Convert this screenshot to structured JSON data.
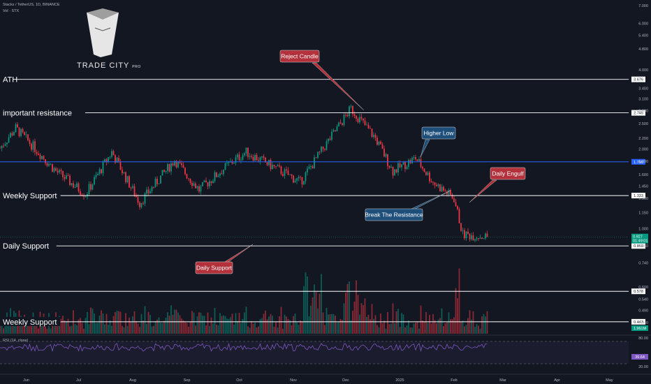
{
  "header": {
    "symbol_line": "Stacks / TetherUS, 1D, BINANCE",
    "volume_line": "Vol · STX"
  },
  "logo": {
    "text": "TRADE CITY",
    "suffix": "PRO"
  },
  "rsi": {
    "label": "RSI (14, close)",
    "upper": "80.00",
    "lower": "20.00",
    "value": "39.64"
  },
  "chart_data": {
    "type": "candlestick",
    "y_scale": "log",
    "y_ticks": [
      7.0,
      6.0,
      5.4,
      4.8,
      4.0,
      3.4,
      3.1,
      2.8,
      2.5,
      2.2,
      2.0,
      1.8,
      1.6,
      1.45,
      1.3,
      1.15,
      1.0,
      0.86,
      0.74,
      0.6,
      0.54,
      0.49,
      0.44
    ],
    "y_tick_labels": [
      "7.000",
      "6.000",
      "5.400",
      "4.800",
      "4.000",
      "3.400",
      "3.100",
      "2.800",
      "2.500",
      "2.200",
      "2.000",
      "1.800",
      "1.600",
      "1.450",
      "1.300",
      "1.150",
      "1.000",
      "0.860",
      "0.740",
      "0.600",
      "0.540",
      "0.490",
      "0.440"
    ],
    "x_labels": [
      "Jun",
      "Jul",
      "Aug",
      "Sep",
      "Oct",
      "Nov",
      "Dec",
      "2025",
      "Feb",
      "Mar",
      "Apr",
      "May"
    ],
    "price_path": [
      {
        "date": "2024-05-17",
        "close": 2.02
      },
      {
        "date": "2024-05-26",
        "close": 2.4
      },
      {
        "date": "2024-06-05",
        "close": 2.05
      },
      {
        "date": "2024-06-18",
        "close": 1.65
      },
      {
        "date": "2024-07-05",
        "close": 1.35
      },
      {
        "date": "2024-07-20",
        "close": 1.95
      },
      {
        "date": "2024-08-05",
        "close": 1.25
      },
      {
        "date": "2024-08-25",
        "close": 1.82
      },
      {
        "date": "2024-09-08",
        "close": 1.4
      },
      {
        "date": "2024-09-25",
        "close": 1.75
      },
      {
        "date": "2024-10-05",
        "close": 1.95
      },
      {
        "date": "2024-10-25",
        "close": 1.65
      },
      {
        "date": "2024-11-05",
        "close": 1.5
      },
      {
        "date": "2024-11-20",
        "close": 2.1
      },
      {
        "date": "2024-12-04",
        "close": 2.85
      },
      {
        "date": "2024-12-18",
        "close": 2.2
      },
      {
        "date": "2024-12-28",
        "close": 1.65
      },
      {
        "date": "2025-01-10",
        "close": 1.85
      },
      {
        "date": "2025-01-20",
        "close": 1.5
      },
      {
        "date": "2025-02-01",
        "close": 1.3
      },
      {
        "date": "2025-02-06",
        "close": 0.95
      },
      {
        "date": "2025-02-20",
        "close": 0.93
      }
    ],
    "levels": [
      {
        "name": "ATH",
        "value": 3.676,
        "value_label": "3.676",
        "color": "#ffffff"
      },
      {
        "name": "important resistance",
        "value": 2.745,
        "value_label": "2.745",
        "color": "#ffffff"
      },
      {
        "name": "",
        "value": 1.79,
        "value_label": "1.790",
        "color": "#2962ff"
      },
      {
        "name": "Weekly Support",
        "value": 1.333,
        "value_label": "1.333",
        "color": "#ffffff"
      },
      {
        "name": "Daily Support",
        "value": 0.859,
        "value_label": "0.859",
        "color": "#ffffff"
      },
      {
        "name": "",
        "value": 0.578,
        "value_label": "0.578",
        "color": "#ffffff"
      },
      {
        "name": "Weekly Support",
        "value": 0.443,
        "value_label": "0.443",
        "color": "#ffffff"
      }
    ],
    "last_price": {
      "value": 0.927,
      "label": "0.927",
      "countdown": "01:49:01",
      "color": "#089981"
    },
    "volume_badge": "1.961M",
    "annotations": [
      {
        "text": "Reject Candle",
        "color": "#b2313b"
      },
      {
        "text": "Higher Low",
        "color": "#1e4e7a"
      },
      {
        "text": "Daily Engulf",
        "color": "#b2313b"
      },
      {
        "text": "Break The Resistance",
        "color": "#1e4e7a"
      },
      {
        "text": "Daily Support",
        "color": "#b2313b"
      }
    ],
    "colors": {
      "up": "#089981",
      "down": "#f23645",
      "background": "#131722",
      "rsi": "#7e57c2"
    }
  }
}
